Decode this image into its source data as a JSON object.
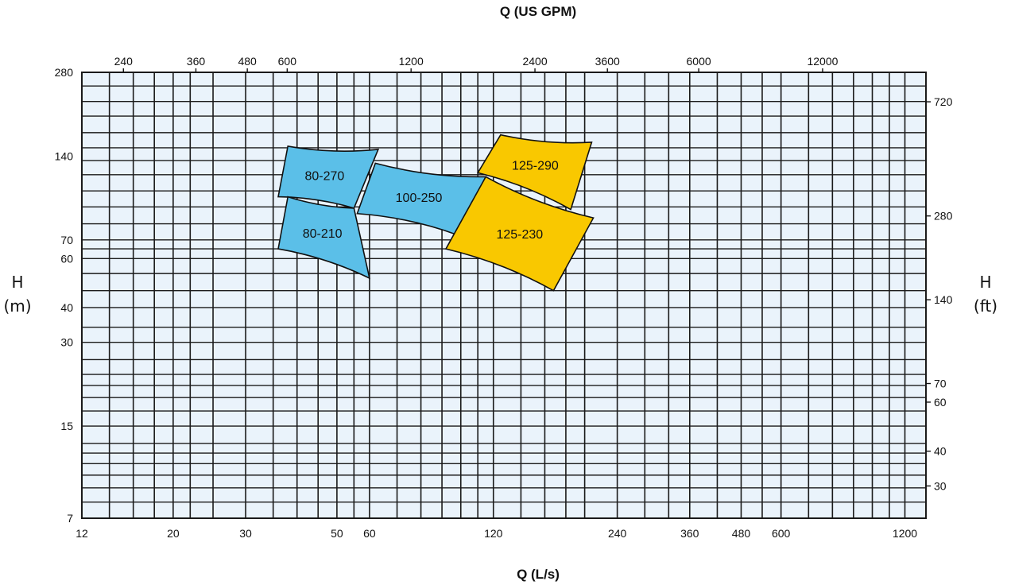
{
  "chart_data": {
    "type": "area",
    "title": "",
    "x_top_label": "Q (US GPM)",
    "x_bottom_label": "Q (L/s)",
    "y_left_label": [
      "H",
      "(m)"
    ],
    "y_right_label": [
      "H",
      "(ft)"
    ],
    "x_scale": "log",
    "y_scale": "log",
    "xlim": [
      12,
      1350
    ],
    "ylim": [
      7,
      280
    ],
    "grid": true,
    "x_bottom_ticks": [
      12,
      20,
      30,
      50,
      60,
      120,
      240,
      360,
      480,
      600,
      1200
    ],
    "x_top_ticks": [
      240,
      360,
      480,
      600,
      1200,
      2400,
      3600,
      6000,
      12000
    ],
    "y_left_ticks": [
      7,
      15,
      30,
      40,
      60,
      70,
      140,
      280
    ],
    "y_right_ticks": [
      30,
      40,
      60,
      70,
      140,
      280,
      720
    ],
    "colors": {
      "blue": "#5bbfe8",
      "yellow": "#f9c800",
      "grid": "#1a1a1a",
      "background": "#eaf3fb"
    },
    "series": [
      {
        "name": "80-270",
        "color": "#5bbfe8",
        "corners": {
          "top_left": [
            38,
            152
          ],
          "top_right": [
            63,
            148
          ],
          "bottom_right": [
            55,
            91
          ],
          "bottom_left": [
            36,
            100
          ]
        }
      },
      {
        "name": "80-210",
        "color": "#5bbfe8",
        "corners": {
          "top_left": [
            38,
            100
          ],
          "top_right": [
            55,
            91
          ],
          "bottom_right": [
            60,
            51
          ],
          "bottom_left": [
            36,
            65
          ]
        }
      },
      {
        "name": "100-250",
        "color": "#5bbfe8",
        "corners": {
          "top_left": [
            62,
            132
          ],
          "top_right": [
            115,
            118
          ],
          "bottom_right": [
            98,
            73
          ],
          "bottom_left": [
            56,
            87
          ]
        }
      },
      {
        "name": "125-290",
        "color": "#f9c800",
        "corners": {
          "top_left": [
            125,
            167
          ],
          "top_right": [
            208,
            157
          ],
          "bottom_right": [
            185,
            90
          ],
          "bottom_left": [
            110,
            122
          ]
        }
      },
      {
        "name": "125-230",
        "color": "#f9c800",
        "corners": {
          "top_left": [
            115,
            118
          ],
          "top_right": [
            210,
            84
          ],
          "bottom_right": [
            168,
            46
          ],
          "bottom_left": [
            92,
            65
          ]
        }
      }
    ]
  }
}
